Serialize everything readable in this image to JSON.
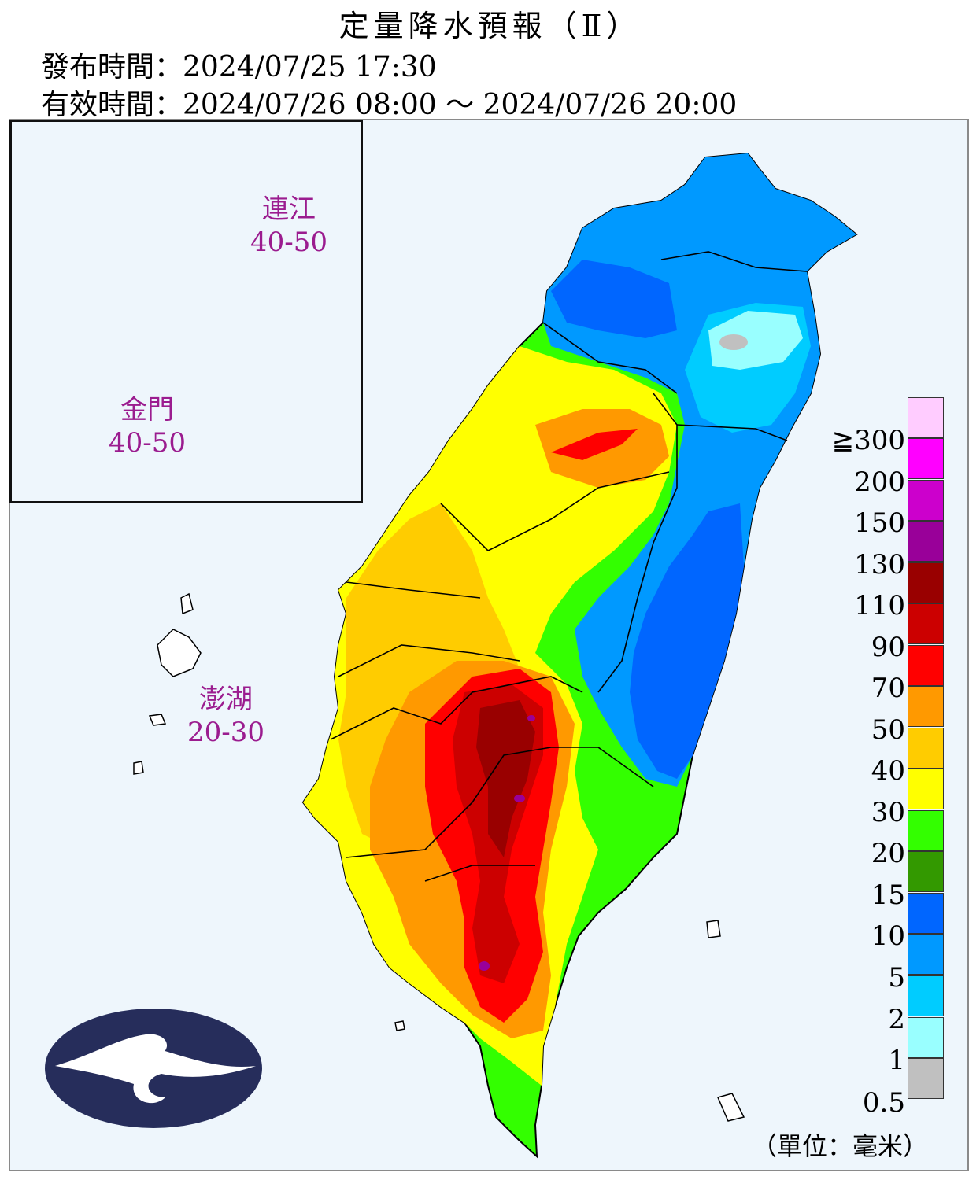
{
  "header": {
    "title": "定量降水預報（Ⅱ）",
    "issue_label": "發布時間：",
    "issue_time": "2024/07/25 17:30",
    "valid_label": "有效時間：",
    "valid_time": "2024/07/26 08:00 ～ 2024/07/26 20:00"
  },
  "regions": {
    "lienchiang": {
      "name": "連江",
      "range": "40-50"
    },
    "kinmen": {
      "name": "金門",
      "range": "40-50"
    },
    "penghu": {
      "name": "澎湖",
      "range": "20-30"
    }
  },
  "legend": {
    "thresholds": [
      "0.5",
      "1",
      "2",
      "5",
      "10",
      "15",
      "20",
      "30",
      "40",
      "50",
      "70",
      "90",
      "110",
      "130",
      "150",
      "200",
      "≧300"
    ],
    "colors": [
      "#c0c0c0",
      "#99ffff",
      "#00ccff",
      "#0099ff",
      "#0066ff",
      "#339900",
      "#33ff00",
      "#ffff00",
      "#ffcc00",
      "#ff9900",
      "#ff0000",
      "#cc0000",
      "#990000",
      "#990099",
      "#cc00cc",
      "#ff00ff",
      "#ffccff"
    ],
    "unit": "（單位：毫米）"
  },
  "map_colors": {
    "sea": "#eef6fc",
    "logo": "#262d5b"
  }
}
